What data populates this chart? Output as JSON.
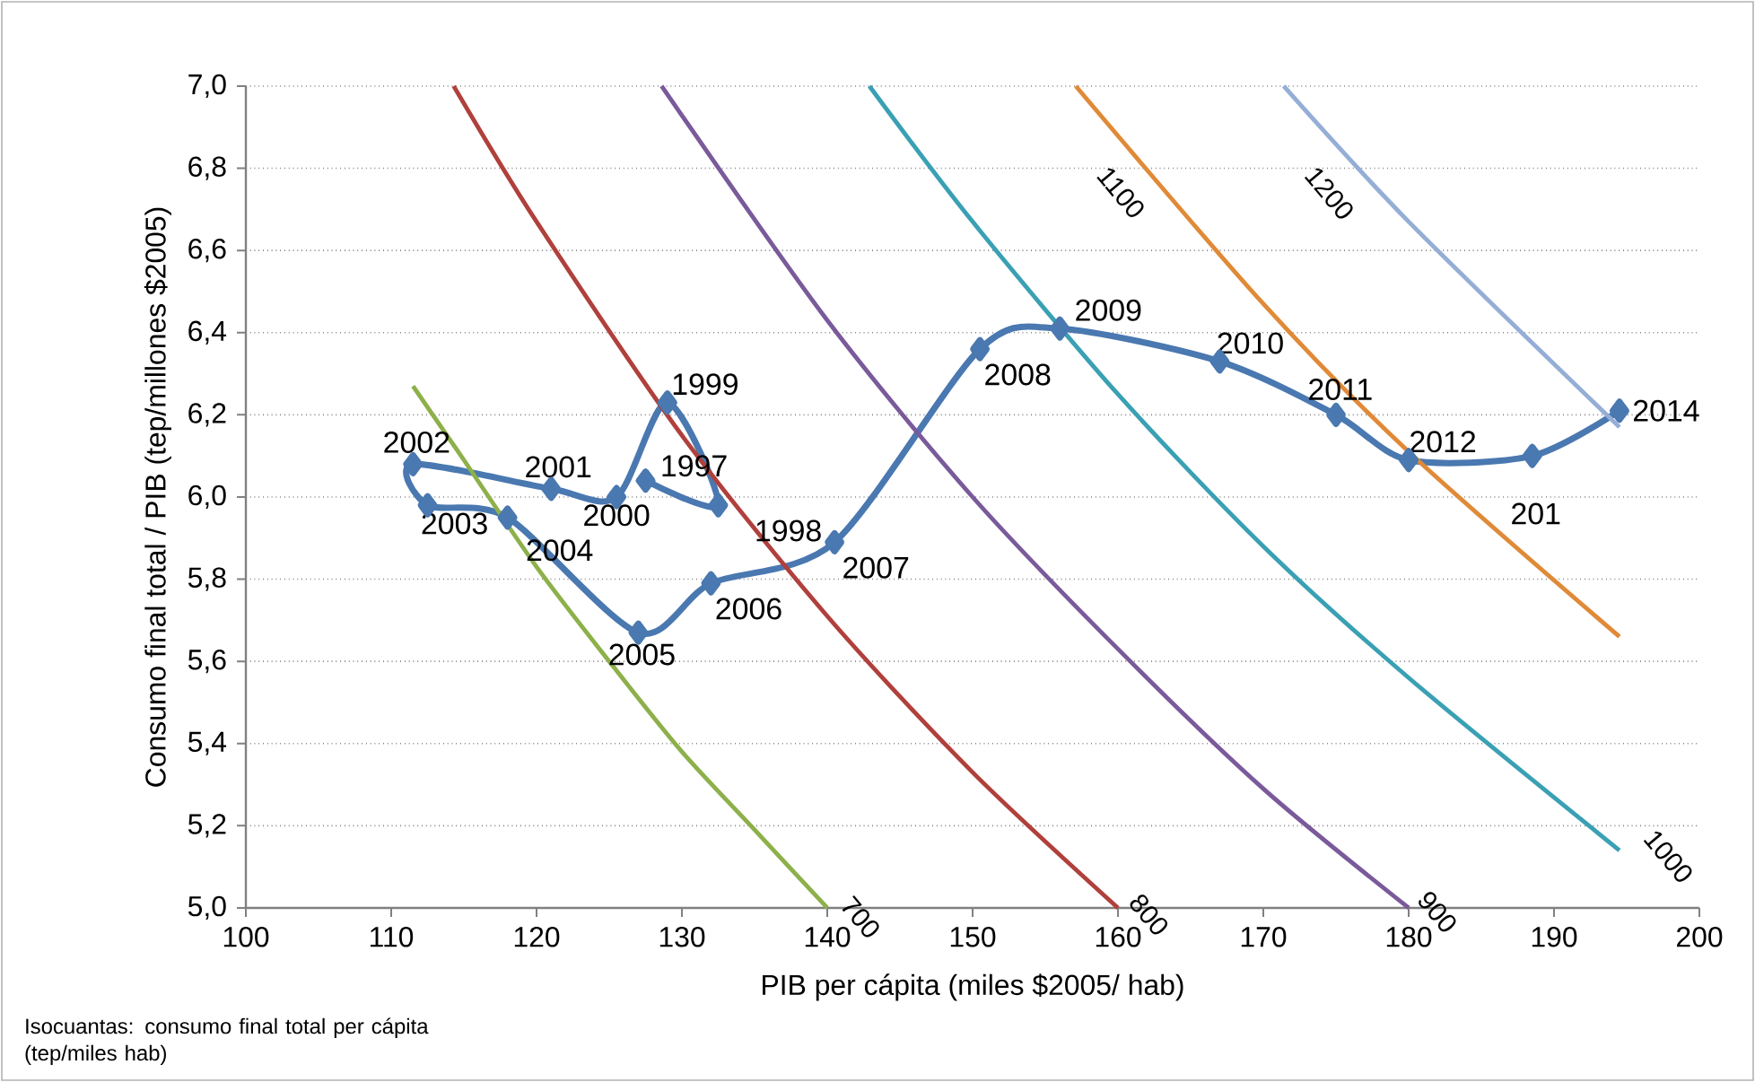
{
  "chart_data": {
    "type": "line",
    "xlabel": "PIB per cápita (miles $2005/ hab)",
    "ylabel": "Consumo final total / PIB (tep/millones $2005)",
    "xlim": [
      100,
      200
    ],
    "ylim": [
      5.0,
      7.0
    ],
    "xticks": [
      100,
      110,
      120,
      130,
      140,
      150,
      160,
      170,
      180,
      190,
      200
    ],
    "yticks": [
      {
        "value": 5.0,
        "label": "5,0"
      },
      {
        "value": 5.2,
        "label": "5,2"
      },
      {
        "value": 5.4,
        "label": "5,4"
      },
      {
        "value": 5.6,
        "label": "5,6"
      },
      {
        "value": 5.8,
        "label": "5,8"
      },
      {
        "value": 6.0,
        "label": "6,0"
      },
      {
        "value": 6.2,
        "label": "6,2"
      },
      {
        "value": 6.4,
        "label": "6,4"
      },
      {
        "value": 6.6,
        "label": "6,6"
      },
      {
        "value": 6.8,
        "label": "6,8"
      },
      {
        "value": 7.0,
        "label": "7,0"
      }
    ],
    "grid": "y",
    "series": [
      {
        "color": "#4a78b0",
        "marker": "diamond",
        "x": [
          127.5,
          132.5,
          129,
          125.5,
          121,
          111.5,
          112.5,
          118,
          127,
          132,
          140.5,
          150.5,
          156,
          167,
          175,
          180,
          188.5,
          194.5
        ],
        "values": [
          6.04,
          5.98,
          6.23,
          6.0,
          6.02,
          6.08,
          5.98,
          5.95,
          5.67,
          5.79,
          5.89,
          6.36,
          6.41,
          6.33,
          6.2,
          6.09,
          6.1,
          6.21
        ]
      },
      {
        "name": "700",
        "color": "#8db04a",
        "marker": "none",
        "x": [
          111.5,
          115,
          120,
          125,
          130,
          135,
          140
        ],
        "values": [
          6.27,
          6.09,
          5.83,
          5.6,
          5.38,
          5.19,
          5.0
        ]
      },
      {
        "name": "800",
        "color": "#b0403c",
        "marker": "none",
        "x": [
          114.3,
          120,
          130,
          140,
          150,
          160
        ],
        "values": [
          7.0,
          6.67,
          6.15,
          5.71,
          5.33,
          5.0
        ]
      },
      {
        "name": "900",
        "color": "#7a5a9a",
        "marker": "none",
        "x": [
          128.6,
          140,
          150,
          160,
          170,
          180
        ],
        "values": [
          7.0,
          6.43,
          6.0,
          5.63,
          5.29,
          5.0
        ]
      },
      {
        "name": "1000",
        "color": "#3aa0b4",
        "marker": "none",
        "x": [
          142.9,
          150,
          160,
          170,
          180,
          194.5
        ],
        "values": [
          7.0,
          6.67,
          6.25,
          5.88,
          5.56,
          5.14
        ]
      },
      {
        "name": "1100",
        "color": "#e08a38",
        "marker": "none",
        "x": [
          157.1,
          170,
          180,
          194.5
        ],
        "values": [
          7.0,
          6.47,
          6.11,
          5.66
        ]
      },
      {
        "name": "1200",
        "color": "#95aed6",
        "marker": "none",
        "x": [
          171.4,
          180,
          194.5
        ],
        "values": [
          7.0,
          6.67,
          6.17
        ]
      }
    ],
    "annotations": [
      {
        "text": "1997",
        "x": 127.5,
        "y": 6.04
      },
      {
        "text": "1998",
        "x": 132.5,
        "y": 5.98
      },
      {
        "text": "1999",
        "x": 129,
        "y": 6.23
      },
      {
        "text": "2000",
        "x": 125.5,
        "y": 6.0
      },
      {
        "text": "2001",
        "x": 121,
        "y": 6.02
      },
      {
        "text": "2002",
        "x": 111.5,
        "y": 6.08
      },
      {
        "text": "2003",
        "x": 112.5,
        "y": 5.98
      },
      {
        "text": "2004",
        "x": 118,
        "y": 5.95
      },
      {
        "text": "2005",
        "x": 127,
        "y": 5.67
      },
      {
        "text": "2006",
        "x": 132,
        "y": 5.79
      },
      {
        "text": "2007",
        "x": 140.5,
        "y": 5.89
      },
      {
        "text": "2008",
        "x": 150.5,
        "y": 6.36
      },
      {
        "text": "2009",
        "x": 156,
        "y": 6.41
      },
      {
        "text": "2010",
        "x": 167,
        "y": 6.33
      },
      {
        "text": "2011",
        "x": 175,
        "y": 6.2
      },
      {
        "text": "2012",
        "x": 180,
        "y": 6.09
      },
      {
        "text": "201",
        "x": 188.5,
        "y": 6.1
      },
      {
        "text": "2014",
        "x": 194.5,
        "y": 6.21
      },
      "Isocuantas: consumo final total per cápita (tep/miles hab)"
    ]
  }
}
